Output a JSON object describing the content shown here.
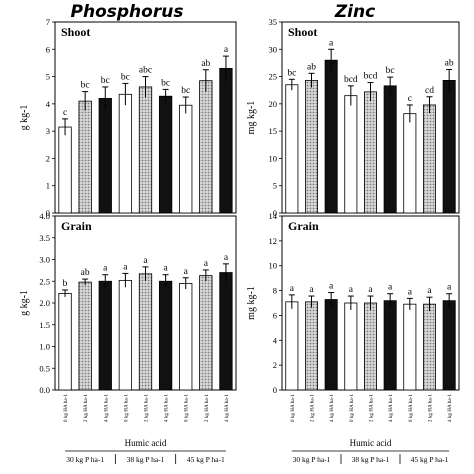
{
  "columns": [
    {
      "title": "Phosphorus"
    },
    {
      "title": "Zinc"
    }
  ],
  "x_axis": {
    "categories": [
      "0 kg HA ha-1",
      "2 kg HA ha-1",
      "4 kg HA ha-1",
      "0 kg HA ha-1",
      "2 kg HA ha-1",
      "4 kg HA ha-1",
      "0 kg HA ha-1",
      "2 kg HA ha-1",
      "4 kg HA ha-1"
    ],
    "title": "Humic acid",
    "groups": [
      "30 kg P ha-1",
      "38 kg P ha-1",
      "45 kg P ha-1"
    ]
  },
  "bar_styles": [
    "white",
    "dotted",
    "black",
    "white",
    "dotted",
    "black",
    "white",
    "dotted",
    "black"
  ],
  "colors": {
    "axis": "#000000",
    "bar_white": "#ffffff",
    "bar_dotted": "#a8a8a8",
    "bar_black": "#111111"
  },
  "chart_data": [
    {
      "type": "bar",
      "panel": "Shoot",
      "column": "Phosphorus",
      "ylabel": "g kg-1",
      "ylim": [
        0,
        7
      ],
      "yticks": [
        "0",
        "1",
        "2",
        "3",
        "4",
        "5",
        "6",
        "7"
      ],
      "values": [
        3.15,
        4.1,
        4.2,
        4.35,
        4.62,
        4.28,
        3.95,
        4.85,
        5.3
      ],
      "errors": [
        0.3,
        0.35,
        0.42,
        0.4,
        0.38,
        0.25,
        0.3,
        0.4,
        0.45
      ],
      "letters": [
        "c",
        "bc",
        "bc",
        "bc",
        "abc",
        "bc",
        "bc",
        "ab",
        "a"
      ]
    },
    {
      "type": "bar",
      "panel": "Shoot",
      "column": "Zinc",
      "ylabel": "mg kg-1",
      "ylim": [
        0,
        35
      ],
      "yticks": [
        "0",
        "5",
        "10",
        "15",
        "20",
        "25",
        "30",
        "35"
      ],
      "values": [
        23.5,
        24.3,
        28.0,
        21.5,
        22.2,
        23.3,
        18.2,
        19.8,
        24.3
      ],
      "errors": [
        1.0,
        1.3,
        2.0,
        1.8,
        1.7,
        1.6,
        1.6,
        1.5,
        2.0
      ],
      "letters": [
        "bc",
        "ab",
        "a",
        "bcd",
        "bcd",
        "bc",
        "c",
        "cd",
        "ab"
      ]
    },
    {
      "type": "bar",
      "panel": "Grain",
      "column": "Phosphorus",
      "ylabel": "g kg-1",
      "ylim": [
        0,
        4
      ],
      "yticks": [
        "0.0",
        "0.5",
        "1.0",
        "1.5",
        "2.0",
        "2.5",
        "3.0",
        "3.5",
        "4.0"
      ],
      "values": [
        2.22,
        2.48,
        2.5,
        2.52,
        2.67,
        2.5,
        2.45,
        2.63,
        2.7
      ],
      "errors": [
        0.08,
        0.07,
        0.15,
        0.16,
        0.16,
        0.15,
        0.13,
        0.13,
        0.2
      ],
      "letters": [
        "b",
        "ab",
        "a",
        "a",
        "a",
        "a",
        "a",
        "a",
        "a"
      ]
    },
    {
      "type": "bar",
      "panel": "Grain",
      "column": "Zinc",
      "ylabel": "mg kg-1",
      "ylim": [
        0,
        15
      ],
      "yticks": [
        "0",
        "2",
        "4",
        "6",
        "8",
        "10",
        "12",
        "14"
      ],
      "values": [
        7.6,
        7.6,
        7.8,
        7.5,
        7.5,
        7.7,
        7.4,
        7.4,
        7.7
      ],
      "errors": [
        0.6,
        0.5,
        0.6,
        0.6,
        0.6,
        0.6,
        0.5,
        0.6,
        0.6
      ],
      "letters": [
        "a",
        "a",
        "a",
        "a",
        "a",
        "a",
        "a",
        "a",
        "a"
      ]
    }
  ]
}
